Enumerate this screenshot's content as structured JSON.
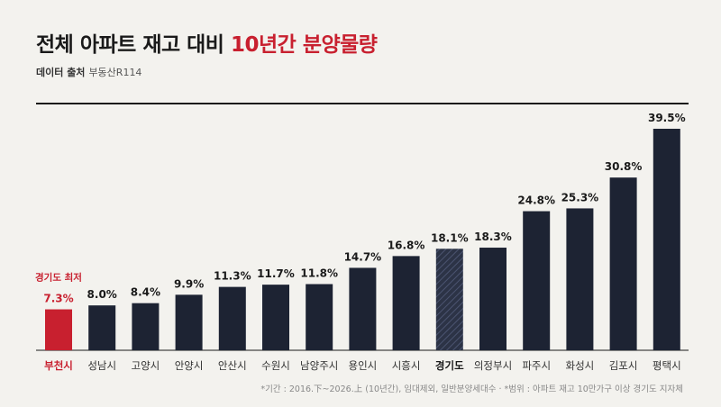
{
  "header": {
    "title_main": "전체 아파트 재고 대비",
    "title_highlight": "10년간 분양물량",
    "source_label": "데이터 출처",
    "source_value": "부동산R114"
  },
  "footnote": "*기간 : 2016.下~2026.上 (10년간), 임대제외, 일반분양세대수 · *범위 : 아파트 재고 10만가구 이상 경기도 지자체",
  "colors": {
    "bar": "#1d2333",
    "highlight": "#c8202f",
    "background": "#f3f2ee",
    "text": "#1a1a1a"
  },
  "chart_data": {
    "type": "bar",
    "title": "전체 아파트 재고 대비 10년간 분양물량",
    "unit": "%",
    "categories": [
      "부천시",
      "성남시",
      "고양시",
      "안양시",
      "안산시",
      "수원시",
      "남양주시",
      "용인시",
      "시흥시",
      "경기도",
      "의정부시",
      "파주시",
      "화성시",
      "김포시",
      "평택시"
    ],
    "values": [
      7.3,
      8.0,
      8.4,
      9.9,
      11.3,
      11.7,
      11.8,
      14.7,
      16.8,
      18.1,
      18.3,
      24.8,
      25.3,
      30.8,
      39.5
    ],
    "value_labels": [
      "7.3%",
      "8.0%",
      "8.4%",
      "9.9%",
      "11.3%",
      "11.7%",
      "11.8%",
      "14.7%",
      "16.8%",
      "18.1%",
      "18.3%",
      "24.8%",
      "25.3%",
      "30.8%",
      "39.5%"
    ],
    "highlight_index": 0,
    "highlight_annotation": "경기도 최저",
    "average_index": 9,
    "ylim": [
      0,
      40
    ],
    "grid": false,
    "legend": "none"
  }
}
